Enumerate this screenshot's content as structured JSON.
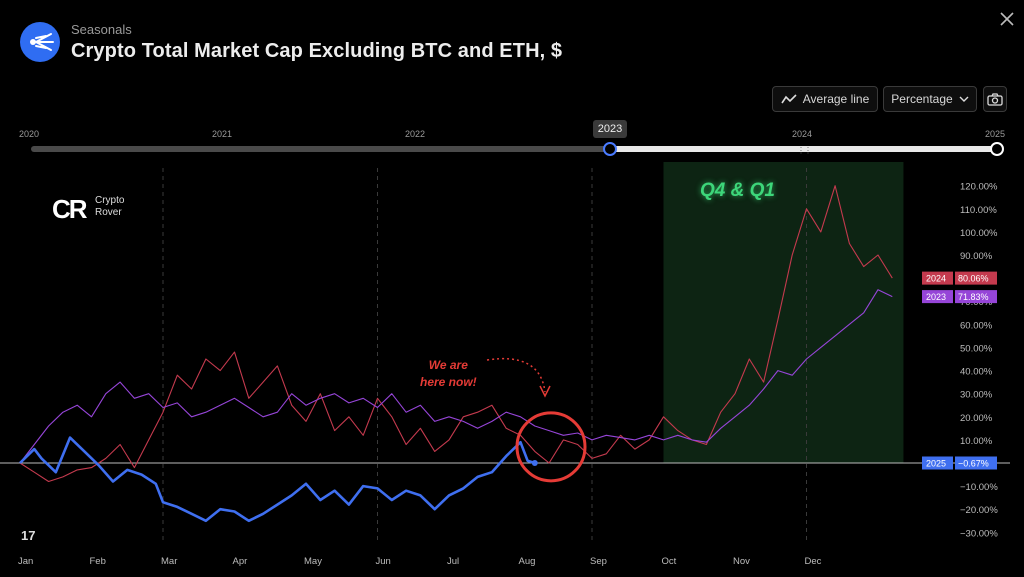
{
  "header": {
    "section": "Seasonals",
    "title": "Crypto Total Market Cap Excluding BTC and ETH, $"
  },
  "toolbar": {
    "average_line_label": "Average line",
    "mode_label": "Percentage"
  },
  "timeline": {
    "years": [
      "2020",
      "2021",
      "2022",
      "2023",
      "2024",
      "2025"
    ],
    "selected_label": "2023",
    "range_start": "2023",
    "range_end": "2025"
  },
  "watermark": {
    "brand_line1": "Crypto",
    "brand_line2": "Rover",
    "tv_mark": "17"
  },
  "annotations": {
    "highlight": "Q4 & Q1",
    "note_line1": "We are",
    "note_line2": "here now!"
  },
  "colors": {
    "y2025": "#3f6ff0",
    "y2024": "#c43a4e",
    "y2023": "#9645d8",
    "highlight_bg": "#0d2413",
    "accent": "#e53b36"
  },
  "chart_data": {
    "type": "line",
    "title": "",
    "xlabel": "",
    "ylabel": "",
    "x_ticks": [
      "Jan",
      "Feb",
      "Mar",
      "Apr",
      "May",
      "Jun",
      "Jul",
      "Aug",
      "Sep",
      "Oct",
      "Nov",
      "Dec"
    ],
    "y_ticks": [
      "120.00%",
      "110.00%",
      "100.00%",
      "90.00%",
      "70.00%",
      "60.00%",
      "50.00%",
      "40.00%",
      "30.00%",
      "20.00%",
      "10.00%",
      "−10.00%",
      "−20.00%",
      "−30.00%"
    ],
    "ylim": [
      -33,
      128
    ],
    "x_unit": "month (0 = Jan 1)",
    "shaded_region": {
      "from": 9,
      "to": 12.3,
      "label": "Q4 & Q1"
    },
    "series": [
      {
        "name": "2025",
        "last_label": "−0.67%",
        "color": "#3f6ff0",
        "x": [
          0,
          0.1,
          0.2,
          0.3,
          0.5,
          0.7,
          0.9,
          1.1,
          1.3,
          1.5,
          1.7,
          1.9,
          2.0,
          2.2,
          2.4,
          2.6,
          2.8,
          3.0,
          3.2,
          3.4,
          3.6,
          3.8,
          4.0,
          4.2,
          4.4,
          4.6,
          4.8,
          5.0,
          5.2,
          5.4,
          5.6,
          5.8,
          6.0,
          6.2,
          6.4,
          6.6,
          6.8,
          7.0,
          7.1,
          7.2
        ],
        "y": [
          0,
          3,
          6,
          2,
          -4,
          11,
          5,
          -1,
          -8,
          -3,
          -5,
          -9,
          -17,
          -19,
          -22,
          -25,
          -20,
          -21,
          -25,
          -22,
          -18,
          -14,
          -9,
          -16,
          -12,
          -18,
          -10,
          -11,
          -16,
          -12,
          -14,
          -20,
          -14,
          -11,
          -6,
          -4,
          3,
          9,
          1,
          0
        ]
      },
      {
        "name": "2024",
        "last_label": "80.06%",
        "color": "#c43a4e",
        "x": [
          0,
          0.2,
          0.4,
          0.6,
          0.8,
          1.0,
          1.2,
          1.4,
          1.6,
          1.8,
          2.0,
          2.2,
          2.4,
          2.6,
          2.8,
          3.0,
          3.2,
          3.4,
          3.6,
          3.8,
          4.0,
          4.2,
          4.4,
          4.6,
          4.8,
          5.0,
          5.2,
          5.4,
          5.6,
          5.8,
          6.0,
          6.2,
          6.4,
          6.6,
          6.8,
          7.0,
          7.2,
          7.4,
          7.6,
          7.8,
          8.0,
          8.2,
          8.4,
          8.6,
          8.8,
          9.0,
          9.2,
          9.4,
          9.6,
          9.8,
          10.0,
          10.2,
          10.4,
          10.6,
          10.8,
          11.0,
          11.2,
          11.4,
          11.6,
          11.8,
          12.0,
          12.2
        ],
        "y": [
          0,
          -4,
          -8,
          -6,
          -3,
          -2,
          2,
          8,
          -2,
          10,
          22,
          38,
          32,
          45,
          40,
          48,
          28,
          35,
          42,
          25,
          18,
          30,
          14,
          20,
          12,
          28,
          20,
          8,
          15,
          5,
          10,
          20,
          22,
          25,
          15,
          12,
          5,
          0,
          10,
          8,
          2,
          4,
          12,
          6,
          10,
          20,
          14,
          10,
          8,
          22,
          30,
          45,
          35,
          62,
          90,
          110,
          100,
          120,
          95,
          85,
          90,
          80
        ]
      },
      {
        "name": "2023",
        "last_label": "71.83%",
        "color": "#9645d8",
        "x": [
          0,
          0.2,
          0.4,
          0.6,
          0.8,
          1.0,
          1.2,
          1.4,
          1.6,
          1.8,
          2.0,
          2.2,
          2.4,
          2.6,
          2.8,
          3.0,
          3.2,
          3.4,
          3.6,
          3.8,
          4.0,
          4.2,
          4.4,
          4.6,
          4.8,
          5.0,
          5.2,
          5.4,
          5.6,
          5.8,
          6.0,
          6.2,
          6.4,
          6.6,
          6.8,
          7.0,
          7.2,
          7.4,
          7.6,
          7.8,
          8.0,
          8.2,
          8.4,
          8.6,
          8.8,
          9.0,
          9.2,
          9.4,
          9.6,
          9.8,
          10.0,
          10.2,
          10.4,
          10.6,
          10.8,
          11.0,
          11.2,
          11.4,
          11.6,
          11.8,
          12.0,
          12.2
        ],
        "y": [
          0,
          8,
          16,
          22,
          25,
          20,
          30,
          35,
          28,
          30,
          24,
          26,
          20,
          22,
          25,
          28,
          24,
          20,
          22,
          30,
          25,
          28,
          30,
          26,
          28,
          24,
          30,
          22,
          25,
          18,
          20,
          18,
          15,
          18,
          22,
          20,
          16,
          14,
          12,
          13,
          10,
          12,
          11,
          10,
          12,
          10,
          12,
          10,
          9,
          15,
          20,
          25,
          32,
          40,
          38,
          45,
          50,
          55,
          60,
          65,
          75,
          72
        ]
      }
    ]
  }
}
